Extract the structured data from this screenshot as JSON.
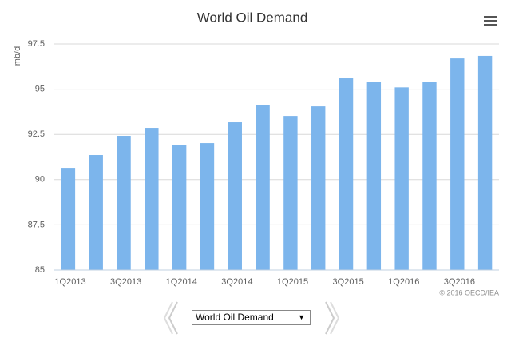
{
  "chart_data": {
    "type": "bar",
    "title": "World Oil Demand",
    "y_label": "mb/d",
    "categories": [
      "1Q2013",
      null,
      "3Q2013",
      null,
      "1Q2014",
      null,
      "3Q2014",
      null,
      "1Q2015",
      null,
      "3Q2015",
      null,
      "1Q2016",
      null,
      "3Q2016",
      null
    ],
    "values": [
      90.65,
      91.36,
      92.42,
      92.86,
      91.93,
      92.02,
      93.17,
      94.1,
      93.52,
      94.05,
      95.6,
      95.42,
      95.1,
      95.38,
      96.7,
      96.84
    ],
    "color": "#7cb5ec",
    "ylim": [
      85,
      97.5
    ],
    "yticks": [
      85,
      87.5,
      90,
      92.5,
      95,
      97.5
    ],
    "grid": true,
    "credits": "© 2016 OECD/IEA"
  },
  "controls": {
    "dropdown": "World Oil Demand"
  }
}
